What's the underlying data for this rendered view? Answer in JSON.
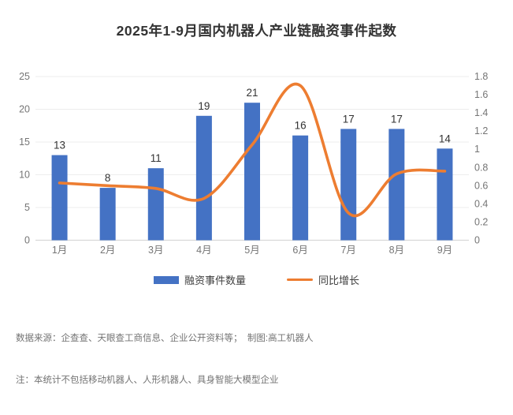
{
  "title": "2025年1-9月国内机器人产业链融资事件起数",
  "chart_data": {
    "type": "combo",
    "title": "2025年1-9月国内机器人产业链融资事件起数",
    "categories": [
      "1月",
      "2月",
      "3月",
      "4月",
      "5月",
      "6月",
      "7月",
      "8月",
      "9月"
    ],
    "series": [
      {
        "name": "融资事件数量",
        "type": "bar",
        "axis": "left",
        "color": "#4472C4",
        "values": [
          13,
          8,
          11,
          19,
          21,
          16,
          17,
          17,
          14
        ],
        "data_labels": [
          "13",
          "8",
          "11",
          "19",
          "21",
          "16",
          "17",
          "17",
          "14"
        ]
      },
      {
        "name": "同比增长",
        "type": "line",
        "axis": "right",
        "color": "#ED7D31",
        "smooth": true,
        "values": [
          0.63,
          0.6,
          0.57,
          0.46,
          1.05,
          1.7,
          0.3,
          0.73,
          0.76
        ]
      }
    ],
    "left_axis": {
      "min": 0,
      "max": 25,
      "step": 5,
      "ticks": [
        "0",
        "5",
        "10",
        "15",
        "20",
        "25"
      ]
    },
    "right_axis": {
      "min": 0,
      "max": 1.8,
      "step": 0.2,
      "ticks": [
        "0",
        "0.2",
        "0.4",
        "0.6",
        "0.8",
        "1",
        "1.2",
        "1.4",
        "1.6",
        "1.8"
      ]
    },
    "grid": true,
    "legend_position": "bottom"
  },
  "legend": {
    "bar_label": "融资事件数量",
    "line_label": "同比增长"
  },
  "footer": {
    "line1": "数据来源：企查查、天眼查工商信息、企业公开资料等；  制图:高工机器人",
    "line2": "注：本统计不包括移动机器人、人形机器人、具身智能大模型企业"
  },
  "colors": {
    "bar": "#4472C4",
    "line": "#ED7D31",
    "title_text": "#333333",
    "axis_label": "#757575",
    "data_label": "#333333",
    "gridline": "#EDEDED",
    "axis_line": "#D9D9D9",
    "footer_text": "#737373"
  }
}
